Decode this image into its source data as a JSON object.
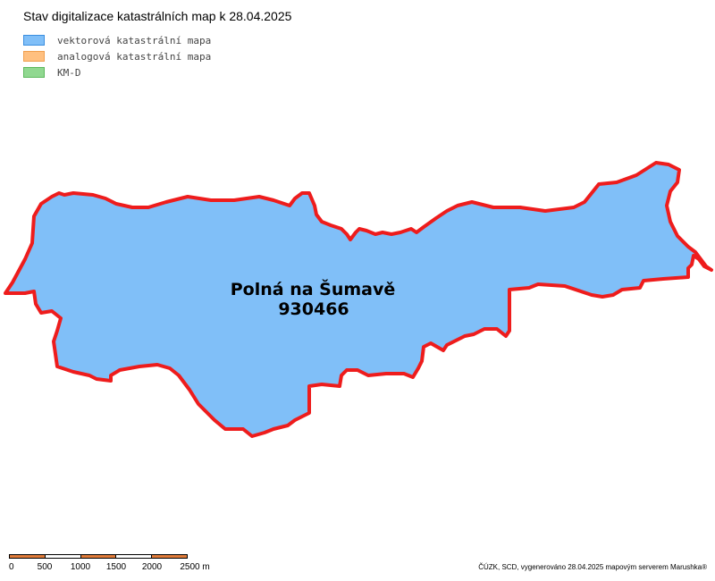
{
  "title": "Stav digitalizace katastrálních map k 28.04.2025",
  "legend": [
    {
      "label": "vektorová katastrální mapa",
      "fill": "#80bff8",
      "border": "#3a8ee0"
    },
    {
      "label": "analogová katastrální mapa",
      "fill": "#ffc080",
      "border": "#f0a050"
    },
    {
      "label": "KM-D",
      "fill": "#90d890",
      "border": "#5cb85c"
    }
  ],
  "parcel": {
    "name": "Polná na Šumavě",
    "code": "930466",
    "fill": "#80bff8",
    "stroke": "#ee1c1c"
  },
  "scalebar": {
    "labels": [
      "0",
      "500",
      "1000",
      "1500",
      "2000",
      "2500 m"
    ],
    "colors": [
      "#e07b39",
      "#ffffff",
      "#e07b39",
      "#ffffff",
      "#e07b39"
    ]
  },
  "credit": "ČÚZK, SCD, vygenerováno 28.04.2025 mapovým serverem Marushka®"
}
